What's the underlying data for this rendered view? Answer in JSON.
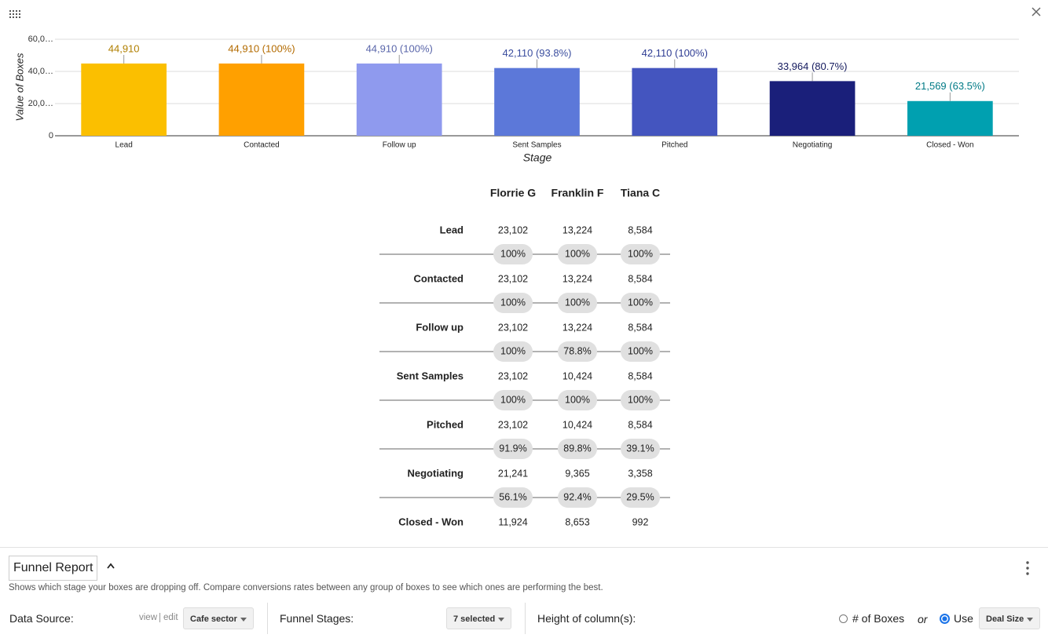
{
  "chart_data": {
    "type": "bar",
    "y_label": "Value of Boxes",
    "x_label": "Stage",
    "categories": [
      "Lead",
      "Contacted",
      "Follow up",
      "Sent Samples",
      "Pitched",
      "Negotiating",
      "Closed - Won"
    ],
    "values": [
      44910,
      44910,
      44910,
      42110,
      42110,
      33964,
      21569
    ],
    "value_labels": [
      "44,910",
      "44,910 (100%)",
      "44,910 (100%)",
      "42,110 (93.8%)",
      "42,110 (100%)",
      "33,964 (80.7%)",
      "21,569 (63.5%)"
    ],
    "colors": [
      "#fbbf00",
      "#ffa000",
      "#8f9aee",
      "#5c78d9",
      "#4455bf",
      "#1a1f7a",
      "#00a0b0"
    ],
    "label_colors": [
      "#b07f00",
      "#b36b00",
      "#5a66aa",
      "#3a4d9e",
      "#2e3c93",
      "#141a5e",
      "#007a86"
    ],
    "ylim": [
      0,
      60000
    ],
    "yticks": [
      0,
      {
        "value": 20000,
        "label": "20,0…"
      },
      {
        "value": 40000,
        "label": "40,0…"
      },
      {
        "value": 60000,
        "label": "60,0…"
      }
    ],
    "grid": true
  },
  "table": {
    "columns": [
      "Florrie G",
      "Franklin F",
      "Tiana C"
    ],
    "rows": [
      {
        "stage": "Lead",
        "values": [
          "23,102",
          "13,224",
          "8,584"
        ]
      },
      {
        "stage": "Contacted",
        "values": [
          "23,102",
          "13,224",
          "8,584"
        ]
      },
      {
        "stage": "Follow up",
        "values": [
          "23,102",
          "13,224",
          "8,584"
        ]
      },
      {
        "stage": "Sent Samples",
        "values": [
          "23,102",
          "10,424",
          "8,584"
        ]
      },
      {
        "stage": "Pitched",
        "values": [
          "23,102",
          "10,424",
          "8,584"
        ]
      },
      {
        "stage": "Negotiating",
        "values": [
          "21,241",
          "9,365",
          "3,358"
        ]
      },
      {
        "stage": "Closed - Won",
        "values": [
          "11,924",
          "8,653",
          "992"
        ]
      }
    ],
    "conversions": [
      [
        "100%",
        "100%",
        "100%"
      ],
      [
        "100%",
        "100%",
        "100%"
      ],
      [
        "100%",
        "78.8%",
        "100%"
      ],
      [
        "100%",
        "100%",
        "100%"
      ],
      [
        "91.9%",
        "89.8%",
        "39.1%"
      ],
      [
        "56.1%",
        "92.4%",
        "29.5%"
      ]
    ]
  },
  "footer": {
    "title": "Funnel Report",
    "description": "Shows which stage your boxes are dropping off. Compare conversions rates between any group of boxes to see which ones are performing the best.",
    "data_source": {
      "label": "Data Source:",
      "view": "view",
      "edit": "edit",
      "value": "Cafe sector"
    },
    "funnel_stages": {
      "label": "Funnel Stages:",
      "value": "7 selected"
    },
    "height": {
      "label": "Height of column(s):",
      "option_count": "# of Boxes",
      "or": "or",
      "option_use": "Use",
      "value": "Deal Size"
    }
  }
}
